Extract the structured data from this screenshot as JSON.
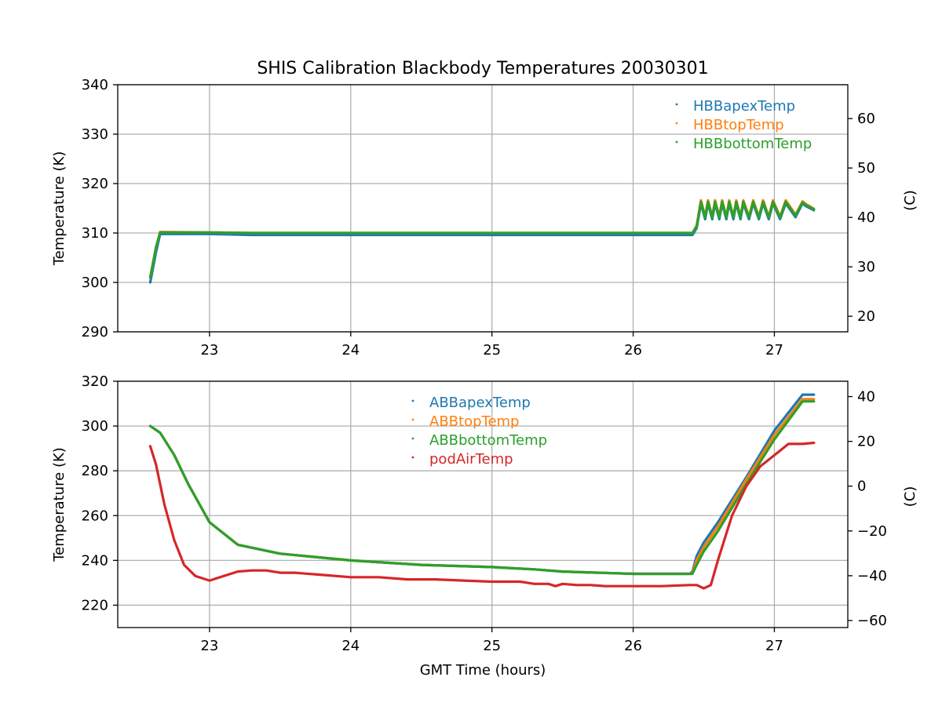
{
  "chart_data": [
    {
      "type": "line",
      "title": "SHIS Calibration Blackbody Temperatures 20030301",
      "xlabel": "",
      "ylabel": "Temperature (K)",
      "ylabel_right": "(C)",
      "xlim": [
        22.35,
        27.52
      ],
      "ylim": [
        290,
        340
      ],
      "ylim_right": [
        16.85,
        66.85
      ],
      "xticks": [
        "23",
        "24",
        "25",
        "26",
        "27"
      ],
      "yticks": [
        "290",
        "300",
        "310",
        "320",
        "330",
        "340"
      ],
      "yticks_right": [
        "20",
        "30",
        "40",
        "50",
        "60"
      ],
      "grid": true,
      "legend_position": "top-right",
      "series": [
        {
          "name": "HBBapexTemp",
          "color": "#1f77b4",
          "x": [
            22.58,
            22.62,
            22.65,
            23.0,
            23.3,
            24.0,
            25.0,
            26.0,
            26.42,
            26.45,
            26.48,
            26.51,
            26.53,
            26.56,
            26.58,
            26.61,
            26.63,
            26.66,
            26.68,
            26.71,
            26.73,
            26.76,
            26.78,
            26.82,
            26.85,
            26.89,
            26.92,
            26.96,
            26.99,
            27.04,
            27.08,
            27.15,
            27.2,
            27.22,
            27.28
          ],
          "y": [
            300,
            306,
            309.8,
            309.8,
            309.6,
            309.6,
            309.6,
            309.6,
            309.6,
            311,
            316,
            312.8,
            316,
            312.8,
            316,
            312.8,
            316,
            312.8,
            316,
            312.8,
            316,
            312.8,
            316,
            312.8,
            316,
            312.8,
            316,
            312.8,
            316,
            312.8,
            316,
            313.2,
            316,
            315.5,
            314.6
          ]
        },
        {
          "name": "HBBtopTemp",
          "color": "#ff7f0e",
          "x": [
            22.58,
            22.62,
            22.65,
            23.0,
            23.3,
            24.0,
            25.0,
            26.0,
            26.42,
            26.45,
            26.48,
            26.51,
            26.53,
            26.56,
            26.58,
            26.61,
            26.63,
            26.66,
            26.68,
            26.71,
            26.73,
            26.76,
            26.78,
            26.82,
            26.85,
            26.89,
            26.92,
            26.96,
            26.99,
            27.04,
            27.08,
            27.15,
            27.2,
            27.22,
            27.28
          ],
          "y": [
            301,
            307,
            310.2,
            310.1,
            310.0,
            310.0,
            310.0,
            310.0,
            310.0,
            311.5,
            316.6,
            313.3,
            316.6,
            313.3,
            316.6,
            313.3,
            316.6,
            313.3,
            316.6,
            313.3,
            316.6,
            313.3,
            316.6,
            313.3,
            316.6,
            313.3,
            316.6,
            313.3,
            316.6,
            313.3,
            316.6,
            313.7,
            316.4,
            315.9,
            314.9
          ]
        },
        {
          "name": "HBBbottomTemp",
          "color": "#2ca02c",
          "x": [
            22.58,
            22.62,
            22.65,
            23.0,
            23.3,
            24.0,
            25.0,
            26.0,
            26.42,
            26.45,
            26.48,
            26.51,
            26.53,
            26.56,
            26.58,
            26.61,
            26.63,
            26.66,
            26.68,
            26.71,
            26.73,
            26.76,
            26.78,
            26.82,
            26.85,
            26.89,
            26.92,
            26.96,
            26.99,
            27.04,
            27.08,
            27.15,
            27.2,
            27.22,
            27.28
          ],
          "y": [
            301,
            307,
            310.1,
            310.1,
            310.0,
            310.0,
            310.0,
            310.0,
            310.0,
            311.3,
            316.3,
            313.1,
            316.3,
            313.1,
            316.3,
            313.1,
            316.3,
            313.1,
            316.3,
            313.1,
            316.3,
            313.1,
            316.3,
            313.1,
            316.3,
            313.1,
            316.3,
            313.1,
            316.3,
            313.1,
            316.3,
            313.5,
            316.2,
            315.7,
            314.8
          ]
        }
      ]
    },
    {
      "type": "line",
      "title": "",
      "xlabel": "GMT Time (hours)",
      "ylabel": "Temperature (K)",
      "ylabel_right": "(C)",
      "xlim": [
        22.35,
        27.52
      ],
      "ylim": [
        210,
        320
      ],
      "ylim_right": [
        -63.15,
        46.85
      ],
      "xticks": [
        "23",
        "24",
        "25",
        "26",
        "27"
      ],
      "yticks": [
        "220",
        "240",
        "260",
        "280",
        "300",
        "320"
      ],
      "yticks_right": [
        "−60",
        "−40",
        "−20",
        "0",
        "20",
        "40"
      ],
      "grid": true,
      "legend_position": "upper-center",
      "series": [
        {
          "name": "ABBapexTemp",
          "color": "#1f77b4",
          "x": [
            22.58,
            22.65,
            22.75,
            22.85,
            23.0,
            23.2,
            23.5,
            24.0,
            24.5,
            25.0,
            25.3,
            25.5,
            26.0,
            26.4,
            26.42,
            26.45,
            26.5,
            26.6,
            26.8,
            27.0,
            27.2,
            27.28
          ],
          "y": [
            300,
            297,
            287,
            274,
            257,
            247,
            243,
            240,
            238,
            237,
            236,
            235,
            234,
            234,
            235,
            242,
            248,
            257,
            277,
            298,
            314,
            314
          ]
        },
        {
          "name": "ABBtopTemp",
          "color": "#ff7f0e",
          "x": [
            22.58,
            22.65,
            22.75,
            22.85,
            23.0,
            23.2,
            23.5,
            24.0,
            24.5,
            25.0,
            25.3,
            25.5,
            26.0,
            26.4,
            26.42,
            26.45,
            26.5,
            26.6,
            26.8,
            27.0,
            27.2,
            27.28
          ],
          "y": [
            300,
            297,
            287,
            274,
            257,
            247,
            243,
            240,
            238,
            237,
            236,
            235,
            234,
            234,
            234.5,
            240,
            246,
            255,
            276,
            296,
            312,
            312
          ]
        },
        {
          "name": "ABBbottomTemp",
          "color": "#2ca02c",
          "x": [
            22.58,
            22.65,
            22.75,
            22.85,
            23.0,
            23.2,
            23.5,
            24.0,
            24.5,
            25.0,
            25.3,
            25.5,
            26.0,
            26.4,
            26.42,
            26.45,
            26.5,
            26.6,
            26.8,
            27.0,
            27.2,
            27.28
          ],
          "y": [
            300,
            297,
            287,
            274,
            257,
            247,
            243,
            240,
            238,
            237,
            236,
            235,
            234,
            234,
            234,
            238,
            244,
            253,
            274,
            294,
            311,
            311
          ]
        },
        {
          "name": "podAirTemp",
          "color": "#d62728",
          "x": [
            22.58,
            22.62,
            22.68,
            22.75,
            22.82,
            22.9,
            23.0,
            23.1,
            23.2,
            23.3,
            23.4,
            23.5,
            23.6,
            23.8,
            24.0,
            24.2,
            24.4,
            24.6,
            24.8,
            25.0,
            25.2,
            25.3,
            25.4,
            25.45,
            25.5,
            25.6,
            25.7,
            25.8,
            26.0,
            26.2,
            26.4,
            26.45,
            26.5,
            26.55,
            26.6,
            26.7,
            26.8,
            26.9,
            27.0,
            27.1,
            27.2,
            27.28
          ],
          "y": [
            291,
            283,
            265,
            249,
            238,
            233,
            231,
            233,
            235,
            235.5,
            235.5,
            234.5,
            234.5,
            233.5,
            232.5,
            232.5,
            231.5,
            231.5,
            231,
            230.5,
            230.5,
            229.5,
            229.5,
            228.5,
            229.5,
            229,
            229,
            228.5,
            228.5,
            228.5,
            229,
            229,
            227.5,
            229,
            240,
            260,
            273,
            282,
            287,
            292,
            292,
            292.5
          ]
        }
      ]
    }
  ]
}
